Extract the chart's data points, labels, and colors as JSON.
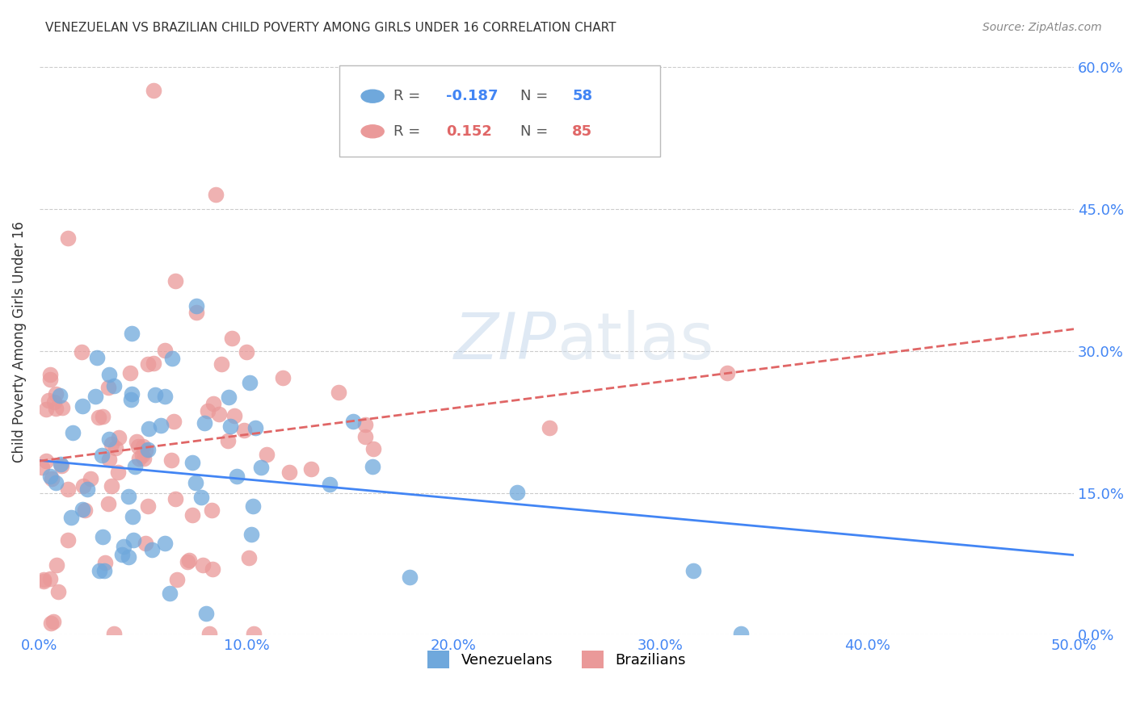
{
  "title": "VENEZUELAN VS BRAZILIAN CHILD POVERTY AMONG GIRLS UNDER 16 CORRELATION CHART",
  "source": "Source: ZipAtlas.com",
  "ylabel": "Child Poverty Among Girls Under 16",
  "xlabel_ticks": [
    "0.0%",
    "10.0%",
    "20.0%",
    "30.0%",
    "40.0%",
    "50.0%"
  ],
  "xlabel_vals": [
    0.0,
    0.1,
    0.2,
    0.3,
    0.4,
    0.5
  ],
  "ylabel_ticks": [
    "0.0%",
    "15.0%",
    "30.0%",
    "45.0%",
    "60.0%"
  ],
  "ylabel_vals": [
    0.0,
    0.15,
    0.3,
    0.45,
    0.6
  ],
  "xlim": [
    0.0,
    0.5
  ],
  "ylim": [
    0.0,
    0.62
  ],
  "blue_color": "#6fa8dc",
  "pink_color": "#ea9999",
  "blue_line_color": "#4285f4",
  "pink_line_color": "#e06666",
  "tick_color": "#4285f4",
  "grid_color": "#cccccc",
  "title_color": "#333333",
  "source_color": "#888888",
  "watermark_color": "#d0e8f5",
  "legend_r_blue": "R = -0.187",
  "legend_n_blue": "N = 58",
  "legend_r_pink": "R =  0.152",
  "legend_n_pink": "N = 85",
  "legend_blue_r_val": "-0.187",
  "legend_blue_n_val": "58",
  "legend_pink_r_val": "0.152",
  "legend_pink_n_val": "85",
  "watermark_zip": "ZIP",
  "watermark_atlas": "atlas",
  "bottom_label_ven": "Venezuelans",
  "bottom_label_bra": "Brazilians"
}
